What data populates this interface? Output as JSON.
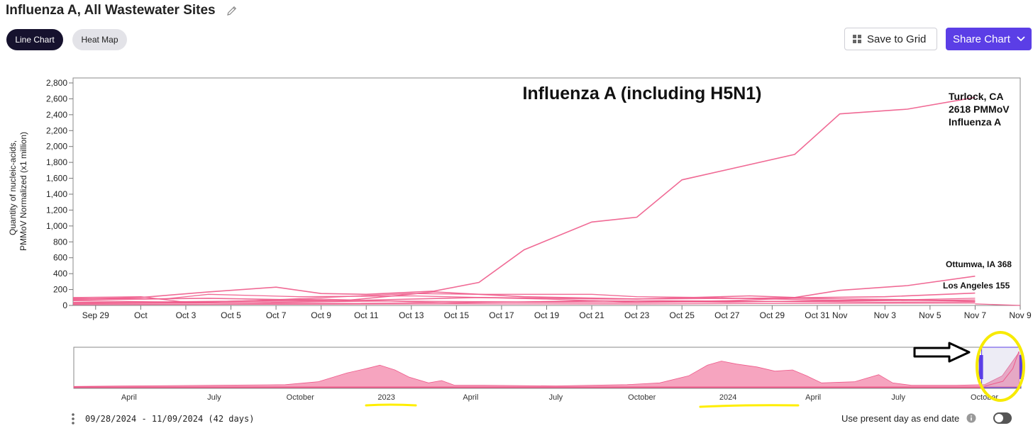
{
  "header": {
    "title": "Influenza A, All Wastewater Sites",
    "edit_icon": "pencil-icon"
  },
  "view_toggle": {
    "line_chart_label": "Line Chart",
    "heat_map_label": "Heat Map",
    "selected": "Line Chart"
  },
  "actions": {
    "save_to_grid_label": "Save to Grid",
    "share_chart_label": "Share Chart"
  },
  "footer": {
    "date_range": "09/28/2024 - 11/09/2024 (42 days)",
    "present_day_label": "Use present day as end date",
    "present_day_enabled": false
  },
  "colors": {
    "series": "#ee5a8a",
    "accent": "#5b3ee6",
    "highlight": "#ffee00"
  },
  "chart_data": [
    {
      "type": "line",
      "title": "Influenza A (including H5N1)",
      "ylabel": "Quantity of nucleic-acids, PMMoV Normalized (x1 million)",
      "xlabel": "",
      "ylim": [
        0,
        2800
      ],
      "xlim": [
        "2024-09-28",
        "2024-11-09"
      ],
      "yticks": [
        0,
        200,
        400,
        600,
        800,
        1000,
        1200,
        1400,
        1600,
        1800,
        2000,
        2200,
        2400,
        2600,
        2800
      ],
      "ytick_labels": [
        "0",
        "200",
        "400",
        "600",
        "800",
        "1,000",
        "1,200",
        "1,400",
        "1,600",
        "1,800",
        "2,000",
        "2,200",
        "2,400",
        "2,600",
        "2,800"
      ],
      "xticks": [
        {
          "date": "2024-09-29",
          "label": "Sep 29"
        },
        {
          "date": "2024-10-01",
          "label": "Oct"
        },
        {
          "date": "2024-10-03",
          "label": "Oct 3"
        },
        {
          "date": "2024-10-05",
          "label": "Oct 5"
        },
        {
          "date": "2024-10-07",
          "label": "Oct 7"
        },
        {
          "date": "2024-10-09",
          "label": "Oct 9"
        },
        {
          "date": "2024-10-11",
          "label": "Oct 11"
        },
        {
          "date": "2024-10-13",
          "label": "Oct 13"
        },
        {
          "date": "2024-10-15",
          "label": "Oct 15"
        },
        {
          "date": "2024-10-17",
          "label": "Oct 17"
        },
        {
          "date": "2024-10-19",
          "label": "Oct 19"
        },
        {
          "date": "2024-10-21",
          "label": "Oct 21"
        },
        {
          "date": "2024-10-23",
          "label": "Oct 23"
        },
        {
          "date": "2024-10-25",
          "label": "Oct 25"
        },
        {
          "date": "2024-10-27",
          "label": "Oct 27"
        },
        {
          "date": "2024-10-29",
          "label": "Oct 29"
        },
        {
          "date": "2024-10-31",
          "label": "Oct 31"
        },
        {
          "date": "2024-11-01",
          "label": "Nov"
        },
        {
          "date": "2024-11-03",
          "label": "Nov 3"
        },
        {
          "date": "2024-11-05",
          "label": "Nov 5"
        },
        {
          "date": "2024-11-07",
          "label": "Nov 7"
        },
        {
          "date": "2024-11-09",
          "label": "Nov 9"
        }
      ],
      "grid": false,
      "legend": "none",
      "annotations": [
        {
          "text": "Turlock, CA",
          "series": "Turlock, CA"
        },
        {
          "text": "2618 PMMoV",
          "series": "Turlock, CA"
        },
        {
          "text": "Influenza A",
          "series": "Turlock, CA"
        },
        {
          "text": "Ottumwa, IA 368",
          "series": "Ottumwa, IA"
        },
        {
          "text": "Los Angeles 155",
          "series": "Los Angeles"
        }
      ],
      "series": [
        {
          "name": "Turlock, CA",
          "points": [
            [
              "2024-09-28",
              80
            ],
            [
              "2024-10-01",
              100
            ],
            [
              "2024-10-04",
              170
            ],
            [
              "2024-10-07",
              230
            ],
            [
              "2024-10-09",
              150
            ],
            [
              "2024-10-11",
              140
            ],
            [
              "2024-10-14",
              180
            ],
            [
              "2024-10-16",
              290
            ],
            [
              "2024-10-18",
              700
            ],
            [
              "2024-10-21",
              1050
            ],
            [
              "2024-10-23",
              1110
            ],
            [
              "2024-10-25",
              1580
            ],
            [
              "2024-10-30",
              1900
            ],
            [
              "2024-11-01",
              2410
            ],
            [
              "2024-11-04",
              2470
            ],
            [
              "2024-11-07",
              2618
            ]
          ]
        },
        {
          "name": "Ottumwa, IA",
          "points": [
            [
              "2024-09-28",
              70
            ],
            [
              "2024-10-04",
              90
            ],
            [
              "2024-10-10",
              60
            ],
            [
              "2024-10-14",
              170
            ],
            [
              "2024-10-18",
              110
            ],
            [
              "2024-10-23",
              80
            ],
            [
              "2024-10-28",
              120
            ],
            [
              "2024-10-30",
              100
            ],
            [
              "2024-11-01",
              190
            ],
            [
              "2024-11-04",
              250
            ],
            [
              "2024-11-07",
              368
            ]
          ]
        },
        {
          "name": "Los Angeles",
          "points": [
            [
              "2024-09-28",
              30
            ],
            [
              "2024-10-04",
              50
            ],
            [
              "2024-10-10",
              60
            ],
            [
              "2024-10-16",
              100
            ],
            [
              "2024-10-22",
              80
            ],
            [
              "2024-10-28",
              90
            ],
            [
              "2024-11-03",
              110
            ],
            [
              "2024-11-07",
              155
            ]
          ]
        },
        {
          "name": "",
          "points": [
            [
              "2024-09-28",
              100
            ],
            [
              "2024-10-01",
              110
            ],
            [
              "2024-10-03",
              40
            ],
            [
              "2024-10-06",
              60
            ],
            [
              "2024-10-13",
              150
            ],
            [
              "2024-10-16",
              140
            ],
            [
              "2024-10-21",
              140
            ],
            [
              "2024-10-23",
              110
            ],
            [
              "2024-10-26",
              100
            ],
            [
              "2024-10-29",
              80
            ],
            [
              "2024-11-02",
              60
            ],
            [
              "2024-11-07",
              90
            ]
          ]
        },
        {
          "name": "",
          "points": [
            [
              "2024-09-28",
              90
            ],
            [
              "2024-10-02",
              80
            ],
            [
              "2024-10-04",
              140
            ],
            [
              "2024-10-08",
              110
            ],
            [
              "2024-10-13",
              120
            ],
            [
              "2024-10-19",
              80
            ],
            [
              "2024-10-23",
              40
            ],
            [
              "2024-10-27",
              60
            ],
            [
              "2024-10-30",
              90
            ],
            [
              "2024-11-05",
              70
            ],
            [
              "2024-11-07",
              50
            ]
          ]
        },
        {
          "name": "",
          "points": [
            [
              "2024-09-28",
              20
            ],
            [
              "2024-10-04",
              30
            ],
            [
              "2024-10-10",
              25
            ],
            [
              "2024-10-16",
              40
            ],
            [
              "2024-10-22",
              35
            ],
            [
              "2024-10-28",
              50
            ],
            [
              "2024-11-03",
              40
            ],
            [
              "2024-11-07",
              45
            ]
          ]
        },
        {
          "name": "",
          "points": [
            [
              "2024-09-28",
              40
            ],
            [
              "2024-10-06",
              35
            ],
            [
              "2024-10-12",
              55
            ],
            [
              "2024-10-18",
              45
            ],
            [
              "2024-10-24",
              60
            ],
            [
              "2024-10-30",
              50
            ],
            [
              "2024-11-07",
              70
            ]
          ]
        },
        {
          "name": "",
          "points": [
            [
              "2024-09-28",
              10
            ],
            [
              "2024-10-07",
              15
            ],
            [
              "2024-10-15",
              20
            ],
            [
              "2024-10-22",
              18
            ],
            [
              "2024-10-29",
              25
            ],
            [
              "2024-11-07",
              30
            ]
          ]
        },
        {
          "name": "",
          "points": [
            [
              "2024-09-28",
              60
            ],
            [
              "2024-10-03",
              40
            ],
            [
              "2024-10-09",
              80
            ],
            [
              "2024-10-15",
              30
            ],
            [
              "2024-10-21",
              60
            ],
            [
              "2024-10-27",
              40
            ],
            [
              "2024-11-02",
              70
            ],
            [
              "2024-11-07",
              55
            ]
          ]
        },
        {
          "name": "",
          "points": [
            [
              "2024-11-07",
              20
            ],
            [
              "2024-11-09",
              0
            ]
          ]
        }
      ]
    },
    {
      "type": "area",
      "title": "",
      "xlim": [
        "2022-02-01",
        "2024-11-09"
      ],
      "xticks": [
        {
          "date": "2022-04-01",
          "label": "April"
        },
        {
          "date": "2022-07-01",
          "label": "July"
        },
        {
          "date": "2022-10-01",
          "label": "October"
        },
        {
          "date": "2023-01-01",
          "label": "2023"
        },
        {
          "date": "2023-04-01",
          "label": "April"
        },
        {
          "date": "2023-07-01",
          "label": "July"
        },
        {
          "date": "2023-10-01",
          "label": "October"
        },
        {
          "date": "2024-01-01",
          "label": "2024"
        },
        {
          "date": "2024-04-01",
          "label": "April"
        },
        {
          "date": "2024-07-01",
          "label": "July"
        },
        {
          "date": "2024-10-01",
          "label": "October"
        }
      ],
      "selected_range": [
        "2024-09-28",
        "2024-11-09"
      ],
      "envelope": [
        [
          "2022-02-01",
          2
        ],
        [
          "2022-04-01",
          3
        ],
        [
          "2022-07-01",
          4
        ],
        [
          "2022-09-15",
          5
        ],
        [
          "2022-10-20",
          10
        ],
        [
          "2022-11-20",
          25
        ],
        [
          "2022-12-10",
          32
        ],
        [
          "2022-12-25",
          38
        ],
        [
          "2023-01-10",
          30
        ],
        [
          "2023-01-25",
          18
        ],
        [
          "2023-02-15",
          8
        ],
        [
          "2023-03-01",
          12
        ],
        [
          "2023-03-15",
          4
        ],
        [
          "2023-04-15",
          4
        ],
        [
          "2023-07-01",
          3
        ],
        [
          "2023-09-15",
          5
        ],
        [
          "2023-10-20",
          8
        ],
        [
          "2023-11-20",
          20
        ],
        [
          "2023-12-10",
          38
        ],
        [
          "2023-12-25",
          45
        ],
        [
          "2024-01-10",
          40
        ],
        [
          "2024-02-01",
          35
        ],
        [
          "2024-02-20",
          28
        ],
        [
          "2024-03-10",
          30
        ],
        [
          "2024-03-25",
          20
        ],
        [
          "2024-04-10",
          8
        ],
        [
          "2024-05-15",
          10
        ],
        [
          "2024-06-10",
          22
        ],
        [
          "2024-06-25",
          8
        ],
        [
          "2024-07-15",
          4
        ],
        [
          "2024-09-01",
          4
        ],
        [
          "2024-10-01",
          5
        ],
        [
          "2024-10-20",
          20
        ],
        [
          "2024-11-07",
          60
        ]
      ]
    }
  ]
}
